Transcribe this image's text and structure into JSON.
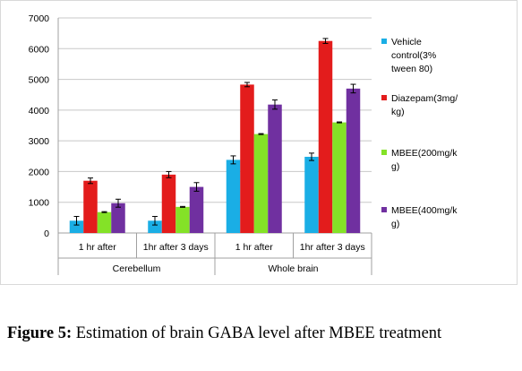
{
  "chart_data": {
    "type": "bar",
    "title": "",
    "xlabel": "",
    "ylabel": "",
    "ylim": [
      0,
      7000
    ],
    "yticks": [
      0,
      1000,
      2000,
      3000,
      4000,
      5000,
      6000,
      7000
    ],
    "grid": true,
    "legend_position": "right",
    "groups": [
      {
        "label": "Cerebellum",
        "categories": [
          "1 hr after",
          "1hr after 3 days"
        ]
      },
      {
        "label": "Whole brain",
        "categories": [
          "1 hr after",
          "1hr after 3 days"
        ]
      }
    ],
    "categories": [
      "1 hr after",
      "1hr after 3 days",
      "1 hr after",
      "1hr after 3 days"
    ],
    "series": [
      {
        "name": "Vehicle control(3% tween 80)",
        "legend_lines": [
          "Vehicle",
          "control(3%",
          "tween 80)"
        ],
        "color": "#1aaee5",
        "values": [
          400,
          400,
          2380,
          2480
        ],
        "errors": [
          140,
          140,
          130,
          120
        ]
      },
      {
        "name": "Diazepam(3mg/kg)",
        "legend_lines": [
          "Diazepam(3mg/",
          "kg)"
        ],
        "color": "#e31c1c",
        "values": [
          1700,
          1900,
          4830,
          6250
        ],
        "errors": [
          90,
          100,
          70,
          80
        ]
      },
      {
        "name": "MBEE(200mg/kg)",
        "legend_lines": [
          "MBEE(200mg/k",
          "g)"
        ],
        "color": "#84e227",
        "values": [
          680,
          850,
          3220,
          3600
        ],
        "errors": [
          15,
          15,
          15,
          15
        ]
      },
      {
        "name": "MBEE(400mg/kg)",
        "legend_lines": [
          "MBEE(400mg/k",
          "g)"
        ],
        "color": "#7030a0",
        "values": [
          970,
          1500,
          4180,
          4700
        ],
        "errors": [
          130,
          140,
          150,
          140
        ]
      }
    ]
  },
  "caption": {
    "label": "Figure 5:",
    "text": "Estimation of brain GABA level after MBEE treatment"
  }
}
